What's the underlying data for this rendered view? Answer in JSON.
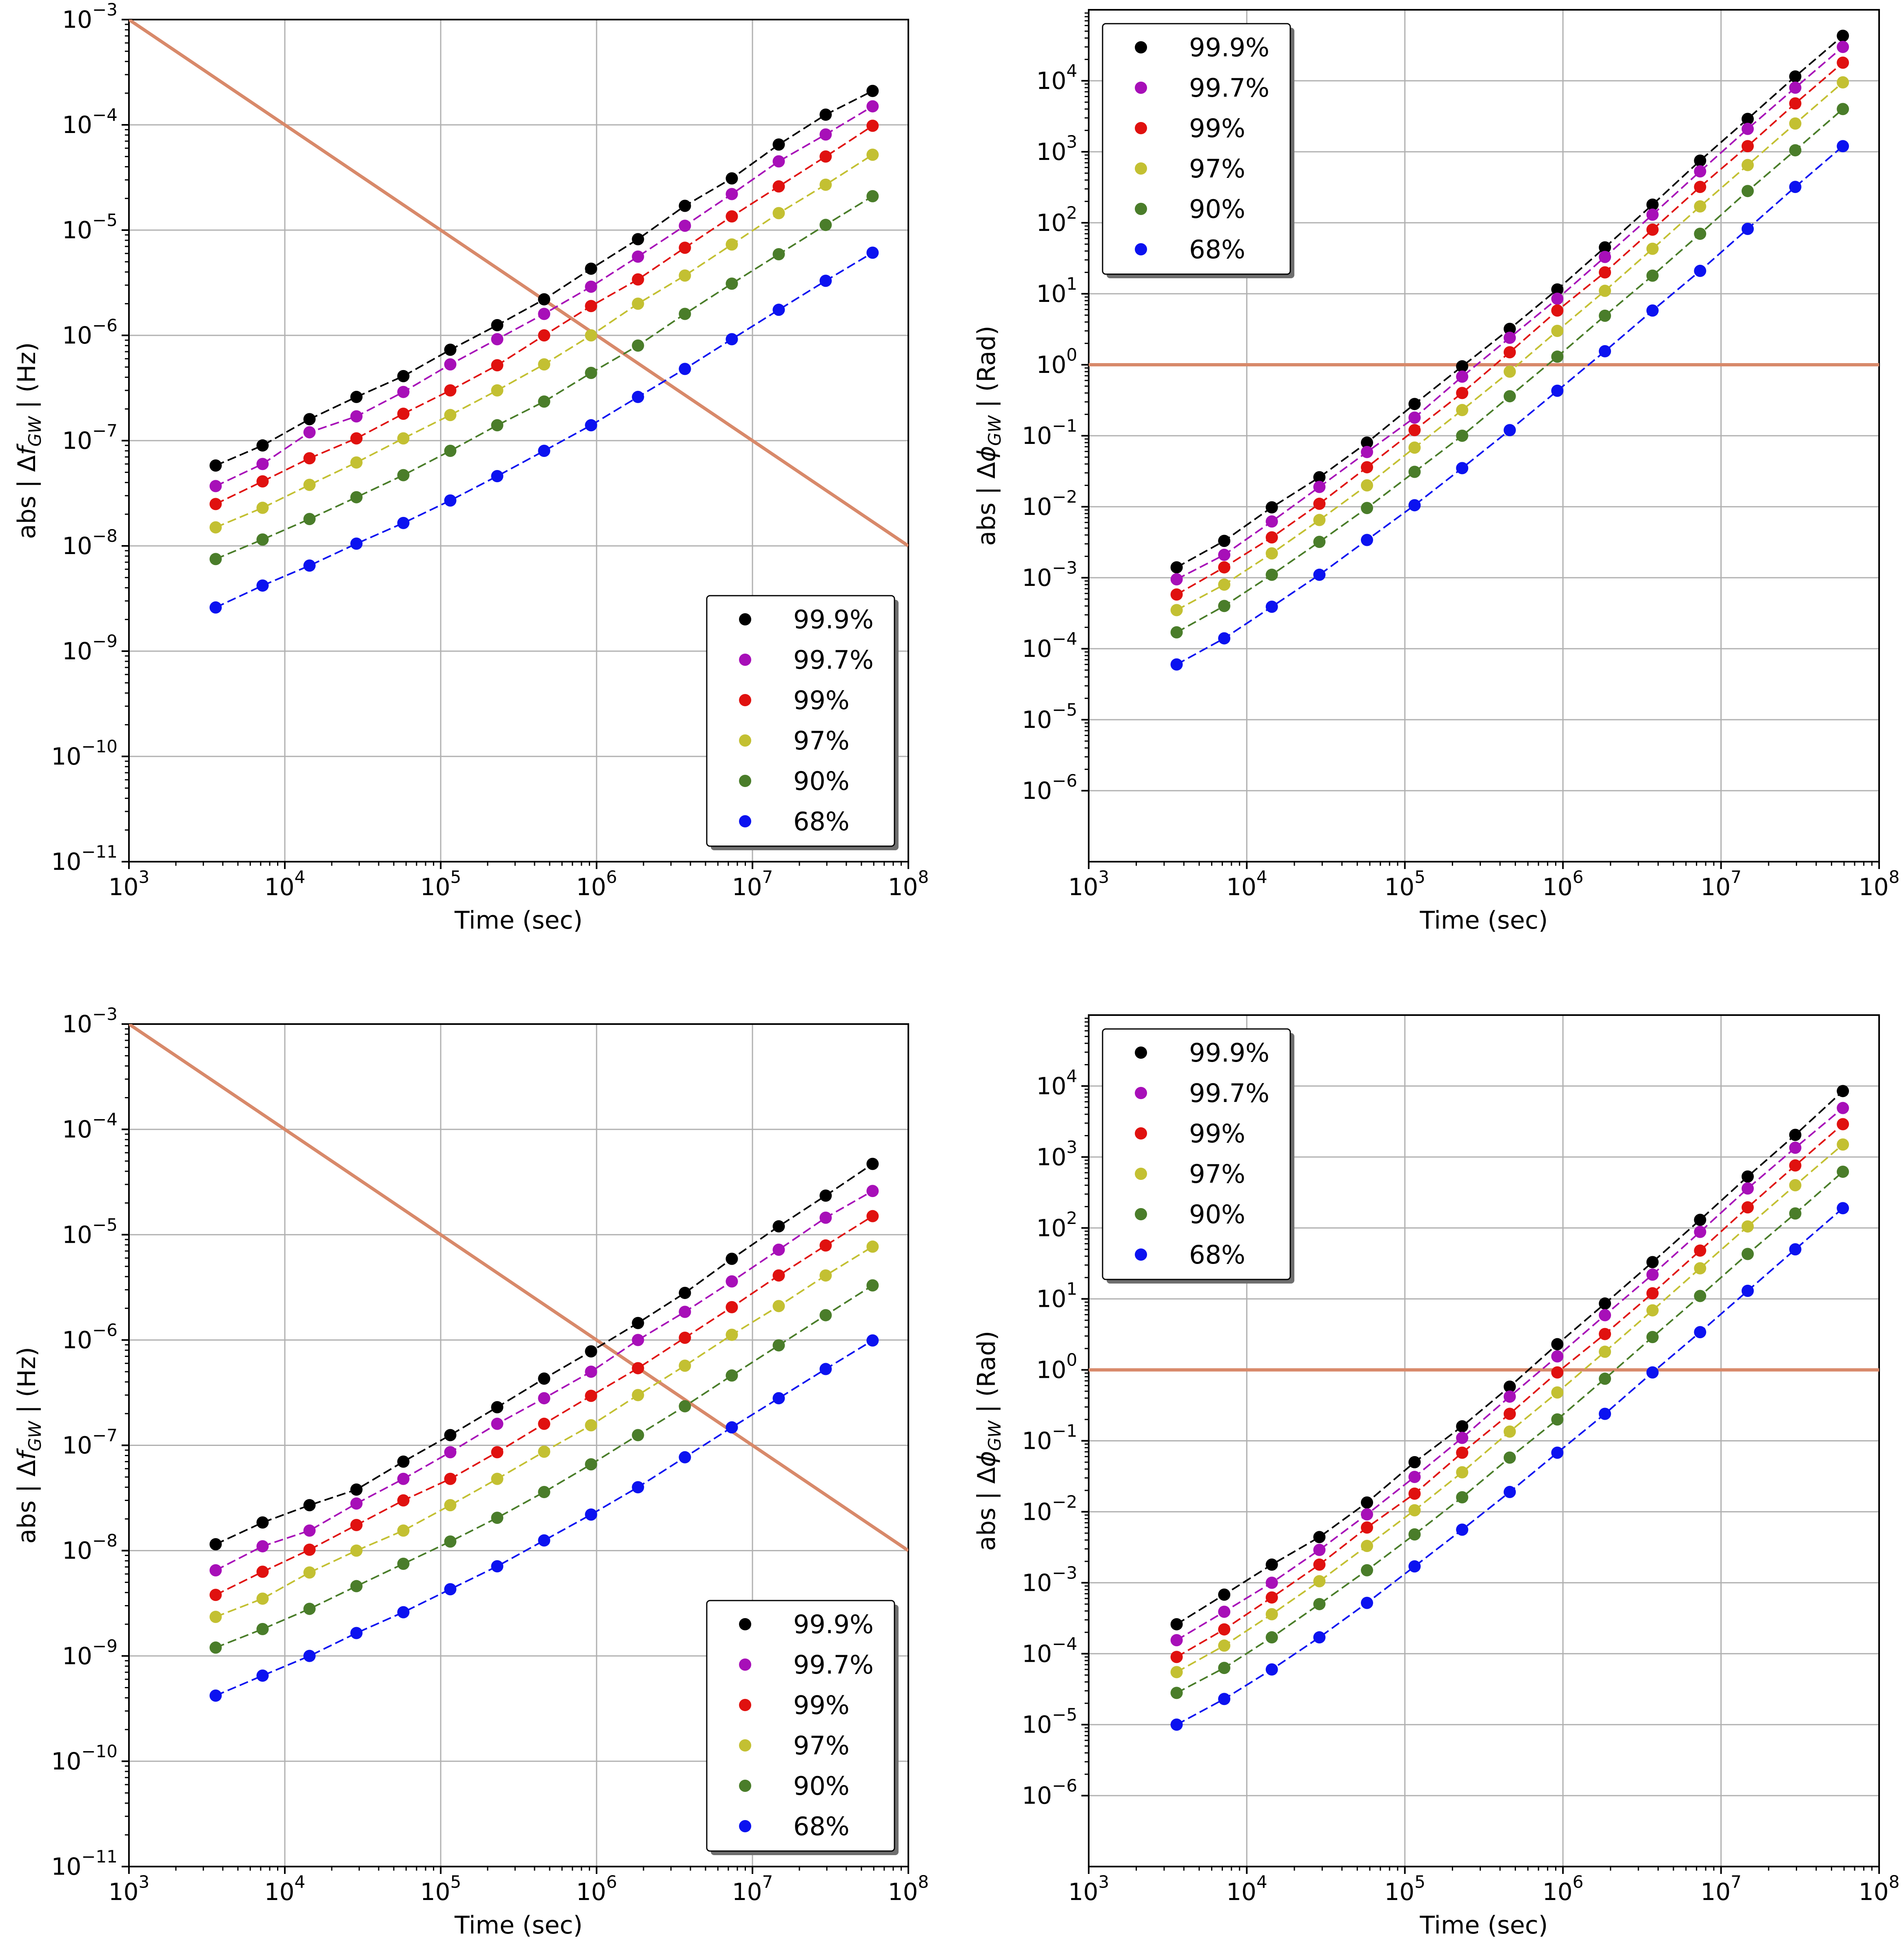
{
  "colors": {
    "reference_line": "#D8896A",
    "grid": "#b0b0b0",
    "axes": "#000000",
    "legend_edge": "#000000",
    "series": [
      "#000000",
      "#A70FB8",
      "#E0110F",
      "#C3C032",
      "#4A7D2A",
      "#0B12F0"
    ]
  },
  "shared": {
    "time_seconds": [
      3600,
      7200,
      14400,
      28800,
      57600,
      115200,
      230400,
      460800,
      921600,
      1843200,
      3686400,
      7372800,
      14745600,
      29491200,
      58982400
    ],
    "x_tick_base": "10",
    "x_tick_exponents": [
      "3",
      "4",
      "5",
      "6",
      "7",
      "8"
    ],
    "x_tick_values": [
      1000,
      10000,
      100000,
      1000000,
      10000000,
      100000000
    ],
    "xlabel": "Time (sec)",
    "xlim": [
      1000,
      100000000
    ],
    "legend_labels": [
      "99.9%",
      "99.7%",
      "99%",
      "97%",
      "90%",
      "68%"
    ]
  },
  "chart_data": [
    {
      "id": "top-left",
      "type": "line",
      "title": "",
      "xlabel": "Time (sec)",
      "ylabel_prefix": "abs | Δ",
      "ylabel_symbol": "f",
      "ylabel_sub": "GW",
      "ylabel_suffix": " |  (Hz)",
      "xscale": "log",
      "yscale": "log",
      "xlim": [
        1000,
        100000000
      ],
      "ylim": [
        1e-11,
        0.001
      ],
      "y_tick_values": [
        1e-11,
        1e-10,
        1e-09,
        1e-08,
        1e-07,
        1e-06,
        1e-05,
        0.0001,
        0.001
      ],
      "y_tick_exponents": [
        "−11",
        "−10",
        "−9",
        "−8",
        "−7",
        "−6",
        "−5",
        "−4",
        "−3"
      ],
      "grid": true,
      "legend_position": "lower-right",
      "reference_line": {
        "label": "",
        "x": [
          1000,
          100000000
        ],
        "y": [
          0.001,
          1e-08
        ]
      },
      "series": [
        {
          "name": "99.9%",
          "values": [
            5.8e-08,
            9e-08,
            1.6e-07,
            2.6e-07,
            4.1e-07,
            7.3e-07,
            1.25e-06,
            2.2e-06,
            4.3e-06,
            8.2e-06,
            1.7e-05,
            3.1e-05,
            6.5e-05,
            0.000125,
            0.00021
          ]
        },
        {
          "name": "99.7%",
          "values": [
            3.7e-08,
            6e-08,
            1.2e-07,
            1.7e-07,
            2.9e-07,
            5.3e-07,
            9.2e-07,
            1.6e-06,
            2.9e-06,
            5.6e-06,
            1.1e-05,
            2.2e-05,
            4.5e-05,
            8.1e-05,
            0.00015
          ]
        },
        {
          "name": "99%",
          "values": [
            2.5e-08,
            4.1e-08,
            6.8e-08,
            1.05e-07,
            1.8e-07,
            3e-07,
            5.2e-07,
            1e-06,
            1.9e-06,
            3.4e-06,
            6.8e-06,
            1.35e-05,
            2.6e-05,
            5e-05,
            9.8e-05
          ]
        },
        {
          "name": "97%",
          "values": [
            1.5e-08,
            2.3e-08,
            3.8e-08,
            6.2e-08,
            1.05e-07,
            1.75e-07,
            3e-07,
            5.3e-07,
            1e-06,
            2e-06,
            3.7e-06,
            7.3e-06,
            1.45e-05,
            2.7e-05,
            5.2e-05
          ]
        },
        {
          "name": "90%",
          "values": [
            7.5e-09,
            1.15e-08,
            1.8e-08,
            2.9e-08,
            4.7e-08,
            8e-08,
            1.4e-07,
            2.35e-07,
            4.4e-07,
            8e-07,
            1.6e-06,
            3.1e-06,
            5.9e-06,
            1.12e-05,
            2.1e-05
          ]
        },
        {
          "name": "68%",
          "values": [
            2.6e-09,
            4.2e-09,
            6.5e-09,
            1.05e-08,
            1.65e-08,
            2.7e-08,
            4.6e-08,
            8e-08,
            1.4e-07,
            2.6e-07,
            4.8e-07,
            9.2e-07,
            1.75e-06,
            3.3e-06,
            6.1e-06
          ]
        }
      ]
    },
    {
      "id": "top-right",
      "type": "line",
      "title": "",
      "xlabel": "Time (sec)",
      "ylabel_prefix": "abs | Δ",
      "ylabel_symbol": "ϕ",
      "ylabel_sub": "GW",
      "ylabel_suffix": " |  (Rad)",
      "xscale": "log",
      "yscale": "log",
      "xlim": [
        1000,
        100000000
      ],
      "ylim": [
        1e-07,
        100000
      ],
      "y_tick_values": [
        1e-06,
        1e-05,
        0.0001,
        0.001,
        0.01,
        0.1,
        1,
        10,
        100,
        1000,
        10000
      ],
      "y_tick_exponents": [
        "−6",
        "−5",
        "−4",
        "−3",
        "−2",
        "−1",
        "0",
        "1",
        "2",
        "3",
        "4"
      ],
      "grid": true,
      "legend_position": "upper-left",
      "reference_line": {
        "label": "",
        "x": [
          1000,
          100000000
        ],
        "y": [
          1,
          1
        ]
      },
      "series": [
        {
          "name": "99.9%",
          "values": [
            0.0014,
            0.0033,
            0.0098,
            0.026,
            0.08,
            0.28,
            0.95,
            3.2,
            11.5,
            45,
            180,
            750,
            2900,
            11500,
            43000
          ]
        },
        {
          "name": "99.7%",
          "values": [
            0.00095,
            0.0021,
            0.0062,
            0.019,
            0.059,
            0.18,
            0.68,
            2.4,
            8.5,
            33,
            130,
            530,
            2100,
            8000,
            30000
          ]
        },
        {
          "name": "99%",
          "values": [
            0.00058,
            0.0014,
            0.0037,
            0.011,
            0.036,
            0.12,
            0.4,
            1.5,
            5.8,
            20,
            80,
            320,
            1200,
            4800,
            18000
          ]
        },
        {
          "name": "97%",
          "values": [
            0.00035,
            0.0008,
            0.0022,
            0.0065,
            0.02,
            0.068,
            0.23,
            0.8,
            3,
            11,
            43,
            170,
            650,
            2500,
            9500
          ]
        },
        {
          "name": "90%",
          "values": [
            0.00017,
            0.0004,
            0.0011,
            0.0032,
            0.0096,
            0.031,
            0.1,
            0.36,
            1.3,
            4.9,
            18,
            70,
            280,
            1050,
            4000
          ]
        },
        {
          "name": "68%",
          "values": [
            6e-05,
            0.00014,
            0.00039,
            0.0011,
            0.0034,
            0.0105,
            0.035,
            0.12,
            0.43,
            1.55,
            5.8,
            21,
            82,
            320,
            1200
          ]
        }
      ]
    },
    {
      "id": "bottom-left",
      "type": "line",
      "title": "",
      "xlabel": "Time (sec)",
      "ylabel_prefix": "abs | Δ",
      "ylabel_symbol": "f",
      "ylabel_sub": "GW",
      "ylabel_suffix": " |  (Hz)",
      "xscale": "log",
      "yscale": "log",
      "xlim": [
        1000,
        100000000
      ],
      "ylim": [
        1e-11,
        0.001
      ],
      "y_tick_values": [
        1e-11,
        1e-10,
        1e-09,
        1e-08,
        1e-07,
        1e-06,
        1e-05,
        0.0001,
        0.001
      ],
      "y_tick_exponents": [
        "−11",
        "−10",
        "−9",
        "−8",
        "−7",
        "−6",
        "−5",
        "−4",
        "−3"
      ],
      "grid": true,
      "legend_position": "lower-right",
      "reference_line": {
        "label": "",
        "x": [
          1000,
          100000000
        ],
        "y": [
          0.001,
          1e-08
        ]
      },
      "series": [
        {
          "name": "99.9%",
          "values": [
            1.15e-08,
            1.85e-08,
            2.7e-08,
            3.8e-08,
            7e-08,
            1.25e-07,
            2.3e-07,
            4.3e-07,
            7.8e-07,
            1.45e-06,
            2.8e-06,
            5.9e-06,
            1.2e-05,
            2.35e-05,
            4.7e-05
          ]
        },
        {
          "name": "99.7%",
          "values": [
            6.5e-09,
            1.1e-08,
            1.55e-08,
            2.8e-08,
            4.8e-08,
            8.6e-08,
            1.6e-07,
            2.8e-07,
            5e-07,
            1e-06,
            1.85e-06,
            3.6e-06,
            7.2e-06,
            1.45e-05,
            2.6e-05
          ]
        },
        {
          "name": "99%",
          "values": [
            3.8e-09,
            6.3e-09,
            1.02e-08,
            1.75e-08,
            3e-08,
            4.8e-08,
            8.6e-08,
            1.6e-07,
            2.95e-07,
            5.4e-07,
            1.05e-06,
            2.05e-06,
            4.1e-06,
            7.9e-06,
            1.5e-05
          ]
        },
        {
          "name": "97%",
          "values": [
            2.35e-09,
            3.5e-09,
            6.2e-09,
            1e-08,
            1.55e-08,
            2.7e-08,
            4.8e-08,
            8.7e-08,
            1.55e-07,
            3e-07,
            5.7e-07,
            1.12e-06,
            2.1e-06,
            4.1e-06,
            7.7e-06
          ]
        },
        {
          "name": "90%",
          "values": [
            1.2e-09,
            1.8e-09,
            2.8e-09,
            4.6e-09,
            7.5e-09,
            1.22e-08,
            2.05e-08,
            3.6e-08,
            6.6e-08,
            1.25e-07,
            2.35e-07,
            4.6e-07,
            8.9e-07,
            1.72e-06,
            3.3e-06
          ]
        },
        {
          "name": "68%",
          "values": [
            4.2e-10,
            6.5e-10,
            1e-09,
            1.65e-09,
            2.6e-09,
            4.3e-09,
            7.1e-09,
            1.25e-08,
            2.2e-08,
            4e-08,
            7.7e-08,
            1.48e-07,
            2.8e-07,
            5.3e-07,
            9.9e-07
          ]
        }
      ]
    },
    {
      "id": "bottom-right",
      "type": "line",
      "title": "",
      "xlabel": "Time (sec)",
      "ylabel_prefix": "abs | Δ",
      "ylabel_symbol": "ϕ",
      "ylabel_sub": "GW",
      "ylabel_suffix": " |  (Rad)",
      "xscale": "log",
      "yscale": "log",
      "xlim": [
        1000,
        100000000
      ],
      "ylim": [
        1e-07,
        100000
      ],
      "y_tick_values": [
        1e-06,
        1e-05,
        0.0001,
        0.001,
        0.01,
        0.1,
        1,
        10,
        100,
        1000,
        10000
      ],
      "y_tick_exponents": [
        "−6",
        "−5",
        "−4",
        "−3",
        "−2",
        "−1",
        "0",
        "1",
        "2",
        "3",
        "4"
      ],
      "grid": true,
      "legend_position": "upper-left",
      "reference_line": {
        "label": "",
        "x": [
          1000,
          100000000
        ],
        "y": [
          1,
          1
        ]
      },
      "series": [
        {
          "name": "99.9%",
          "values": [
            0.00026,
            0.00068,
            0.0018,
            0.0044,
            0.0135,
            0.05,
            0.16,
            0.58,
            2.3,
            8.6,
            33,
            130,
            530,
            2050,
            8500
          ]
        },
        {
          "name": "99.7%",
          "values": [
            0.000155,
            0.00039,
            0.001,
            0.0029,
            0.0092,
            0.031,
            0.11,
            0.42,
            1.55,
            5.9,
            22,
            88,
            360,
            1350,
            4900
          ]
        },
        {
          "name": "99%",
          "values": [
            9e-05,
            0.00022,
            0.00062,
            0.0018,
            0.006,
            0.018,
            0.068,
            0.24,
            0.92,
            3.2,
            12,
            48,
            195,
            760,
            2900
          ]
        },
        {
          "name": "97%",
          "values": [
            5.5e-05,
            0.00013,
            0.00036,
            0.00105,
            0.0033,
            0.0105,
            0.036,
            0.135,
            0.48,
            1.8,
            6.9,
            27,
            105,
            400,
            1500
          ]
        },
        {
          "name": "90%",
          "values": [
            2.8e-05,
            6.3e-05,
            0.00017,
            0.0005,
            0.0015,
            0.0048,
            0.016,
            0.058,
            0.2,
            0.75,
            2.9,
            11,
            43,
            160,
            620
          ]
        },
        {
          "name": "68%",
          "values": [
            1e-05,
            2.3e-05,
            6e-05,
            0.00017,
            0.00052,
            0.0017,
            0.0056,
            0.019,
            0.068,
            0.24,
            0.92,
            3.4,
            13,
            50,
            190
          ]
        }
      ]
    }
  ]
}
